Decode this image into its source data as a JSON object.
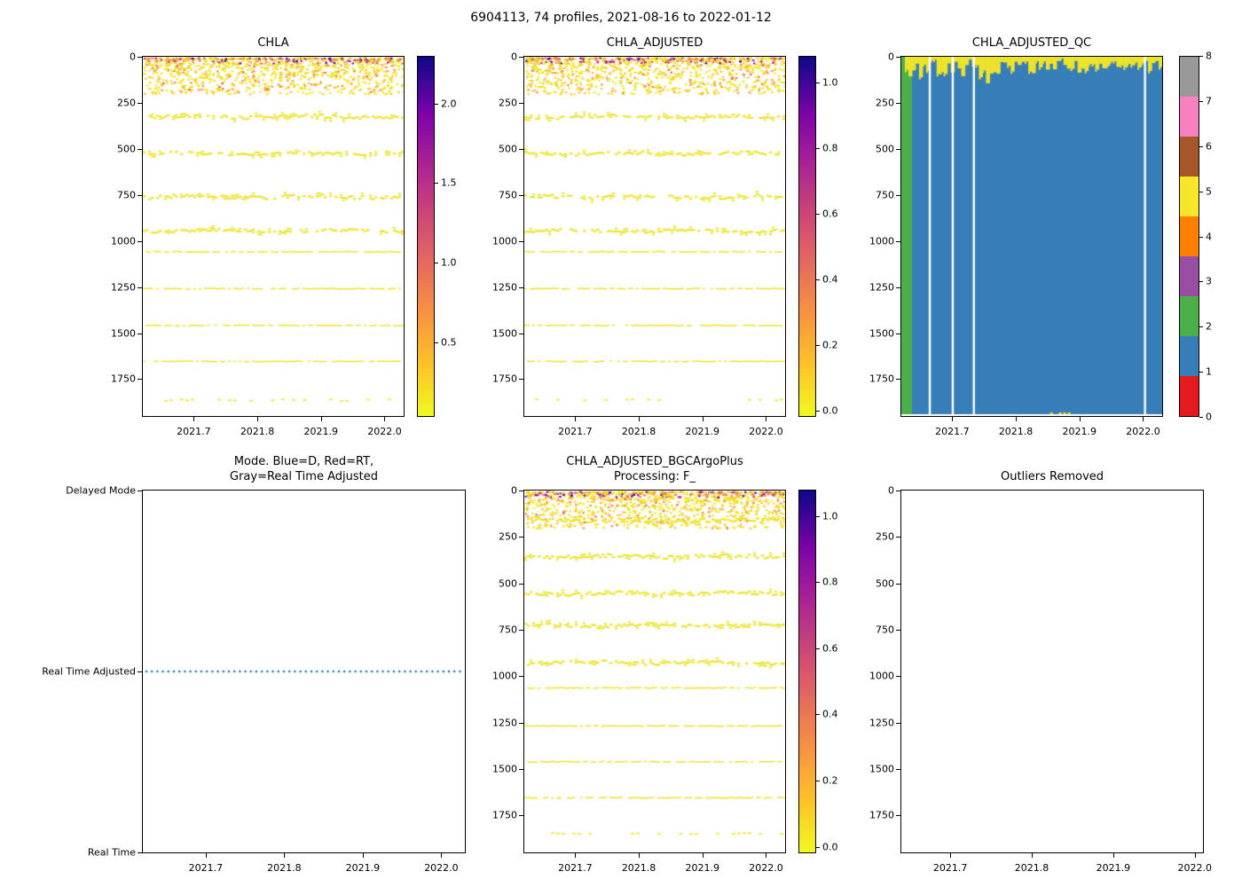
{
  "figure": {
    "title": "6904113, 74 profiles, 2021-08-16 to 2022-01-12",
    "platform": "6904113",
    "n_profiles": 74,
    "date_start": "2021-08-16",
    "date_end": "2022-01-12"
  },
  "chart_data": [
    {
      "type": "profile-heatmap",
      "title": "CHLA",
      "seed": 11,
      "x_range": [
        2021.62,
        2022.03
      ],
      "x_ticks": [
        2021.7,
        2021.8,
        2021.9,
        2022.0
      ],
      "x_tick_labels": [
        "2021.7",
        "2021.8",
        "2021.9",
        "2022.0"
      ],
      "depth_range": [
        0,
        1950
      ],
      "y_ticks": [
        0,
        250,
        500,
        750,
        1000,
        1250,
        1500,
        1750
      ],
      "y_tick_labels": [
        "0",
        "250",
        "500",
        "750",
        "1000",
        "1250",
        "1500",
        "1750"
      ],
      "colorbar": {
        "vmin": 0.03,
        "vmax": 2.3,
        "tick_values": [
          0.5,
          1.0,
          1.5,
          2.0
        ],
        "tick_labels": [
          "0.5",
          "1.0",
          "1.5",
          "2.0"
        ],
        "gradient_stops": [
          [
            "#f0f921",
            0
          ],
          [
            "#fdc328",
            14
          ],
          [
            "#f89441",
            28
          ],
          [
            "#e56b5d",
            42
          ],
          [
            "#cc4778",
            56
          ],
          [
            "#aa2395",
            70
          ],
          [
            "#7d03a8",
            84
          ],
          [
            "#0d0887",
            100
          ]
        ]
      },
      "band_color": "#ece32a",
      "surface": {
        "depth_min": 3,
        "depth_max": 200,
        "count": 1150,
        "shallow_colors": [
          [
            "#efe41f",
            0.38
          ],
          [
            "#fdc02f",
            0.18
          ],
          [
            "#f58b46",
            0.14
          ],
          [
            "#e16462",
            0.1
          ],
          [
            "#c13b82",
            0.08
          ],
          [
            "#8f0da4",
            0.07
          ],
          [
            "#41049d",
            0.05
          ]
        ],
        "deep_colors": [
          [
            "#efe41f",
            0.66
          ],
          [
            "#fdc02f",
            0.22
          ],
          [
            "#f58b46",
            0.09
          ],
          [
            "#e16462",
            0.03
          ]
        ]
      },
      "bands": [
        {
          "depth": 320,
          "spread": 9,
          "style": "thick"
        },
        {
          "depth": 520,
          "spread": 8,
          "style": "thick"
        },
        {
          "depth": 755,
          "spread": 9,
          "style": "thick"
        },
        {
          "depth": 940,
          "spread": 7,
          "style": "thick"
        },
        {
          "depth": 1055,
          "spread": 2,
          "style": "thin"
        },
        {
          "depth": 1255,
          "spread": 2,
          "style": "thin"
        },
        {
          "depth": 1455,
          "spread": 2,
          "style": "thin"
        },
        {
          "depth": 1650,
          "spread": 2,
          "style": "thin"
        },
        {
          "depth": 1860,
          "spread": 4,
          "style": "sparse"
        }
      ]
    },
    {
      "type": "profile-heatmap",
      "title": "CHLA_ADJUSTED",
      "seed": 23,
      "x_range": [
        2021.62,
        2022.03
      ],
      "x_ticks": [
        2021.7,
        2021.8,
        2021.9,
        2022.0
      ],
      "x_tick_labels": [
        "2021.7",
        "2021.8",
        "2021.9",
        "2022.0"
      ],
      "depth_range": [
        0,
        1950
      ],
      "y_ticks": [
        0,
        250,
        500,
        750,
        1000,
        1250,
        1500,
        1750
      ],
      "y_tick_labels": [
        "0",
        "250",
        "500",
        "750",
        "1000",
        "1250",
        "1500",
        "1750"
      ],
      "colorbar": {
        "vmin": -0.02,
        "vmax": 1.08,
        "tick_values": [
          0.0,
          0.2,
          0.4,
          0.6,
          0.8,
          1.0
        ],
        "tick_labels": [
          "0.0",
          "0.2",
          "0.4",
          "0.6",
          "0.8",
          "1.0"
        ],
        "gradient_stops": [
          [
            "#f0f921",
            0
          ],
          [
            "#fdc328",
            14
          ],
          [
            "#f89441",
            28
          ],
          [
            "#e56b5d",
            42
          ],
          [
            "#cc4778",
            56
          ],
          [
            "#aa2395",
            70
          ],
          [
            "#7d03a8",
            84
          ],
          [
            "#0d0887",
            100
          ]
        ]
      },
      "band_color": "#ece32a",
      "surface": {
        "depth_min": 3,
        "depth_max": 200,
        "count": 1100,
        "shallow_colors": [
          [
            "#efe41f",
            0.4
          ],
          [
            "#fdc02f",
            0.18
          ],
          [
            "#f58b46",
            0.14
          ],
          [
            "#e16462",
            0.1
          ],
          [
            "#c13b82",
            0.08
          ],
          [
            "#8f0da4",
            0.06
          ],
          [
            "#41049d",
            0.04
          ]
        ],
        "deep_colors": [
          [
            "#efe41f",
            0.66
          ],
          [
            "#fdc02f",
            0.22
          ],
          [
            "#f58b46",
            0.09
          ],
          [
            "#e16462",
            0.03
          ]
        ]
      },
      "bands": [
        {
          "depth": 320,
          "spread": 9,
          "style": "thick"
        },
        {
          "depth": 520,
          "spread": 8,
          "style": "thick"
        },
        {
          "depth": 755,
          "spread": 9,
          "style": "thick"
        },
        {
          "depth": 940,
          "spread": 7,
          "style": "thick"
        },
        {
          "depth": 1055,
          "spread": 2,
          "style": "thin"
        },
        {
          "depth": 1255,
          "spread": 2,
          "style": "thin"
        },
        {
          "depth": 1455,
          "spread": 2,
          "style": "thin"
        },
        {
          "depth": 1650,
          "spread": 2,
          "style": "thin"
        },
        {
          "depth": 1860,
          "spread": 4,
          "style": "sparse"
        }
      ]
    },
    {
      "type": "qc-heatmap",
      "title": "CHLA_ADJUSTED_QC",
      "seed": 5,
      "n_profiles": 74,
      "x_range": [
        2021.62,
        2022.03
      ],
      "x_ticks": [
        2021.7,
        2021.8,
        2021.9,
        2022.0
      ],
      "x_tick_labels": [
        "2021.7",
        "2021.8",
        "2021.9",
        "2022.0"
      ],
      "depth_range": [
        0,
        1950
      ],
      "y_ticks": [
        0,
        250,
        500,
        750,
        1000,
        1250,
        1500,
        1750
      ],
      "y_tick_labels": [
        "0",
        "250",
        "500",
        "750",
        "1000",
        "1250",
        "1500",
        "1750"
      ],
      "qc_fill_value": 1,
      "qc_fill_color": "#377eb8",
      "green_value": 2,
      "green_color": "#4daf4a",
      "green_profiles": 3,
      "surface_value": 5,
      "surface_color": "#ede32b",
      "surface_depth_min": 20,
      "surface_depth_max": 95,
      "gap_fractions": [
        0.105,
        0.193,
        0.274,
        0.93
      ],
      "bottom_marks": [
        {
          "x": 0.57,
          "w": 0.07
        }
      ],
      "colorbar": {
        "segment_colors": [
          "#e41a1c",
          "#377eb8",
          "#4daf4a",
          "#984ea3",
          "#ff7f00",
          "#f7e62a",
          "#a65628",
          "#f781bf",
          "#999999"
        ],
        "tick_values": [
          0,
          1,
          2,
          3,
          4,
          5,
          6,
          7,
          8
        ],
        "tick_labels": [
          "0",
          "1",
          "2",
          "3",
          "4",
          "5",
          "6",
          "7",
          "8"
        ]
      }
    },
    {
      "type": "mode-line",
      "title": "Mode. Blue=D, Red=RT,\nGray=Real Time Adjusted",
      "x_range": [
        2021.62,
        2022.03
      ],
      "x_ticks": [
        2021.7,
        2021.8,
        2021.9,
        2022.0
      ],
      "x_tick_labels": [
        "2021.7",
        "2021.8",
        "2021.9",
        "2022.0"
      ],
      "y_categories": [
        "Delayed Mode",
        "Real Time Adjusted",
        "Real Time"
      ],
      "line_category": "Real Time Adjusted",
      "line_category_index": 1,
      "line_color": "#1f77b4",
      "line_style": "dotted"
    },
    {
      "type": "profile-heatmap",
      "title": "CHLA_ADJUSTED_BGCArgoPlus\nProcessing: F_",
      "seed": 37,
      "x_range": [
        2021.62,
        2022.03
      ],
      "x_ticks": [
        2021.7,
        2021.8,
        2021.9,
        2022.0
      ],
      "x_tick_labels": [
        "2021.7",
        "2021.8",
        "2021.9",
        "2022.0"
      ],
      "depth_range": [
        0,
        1950
      ],
      "y_ticks": [
        0,
        250,
        500,
        750,
        1000,
        1250,
        1500,
        1750
      ],
      "y_tick_labels": [
        "0",
        "250",
        "500",
        "750",
        "1000",
        "1250",
        "1500",
        "1750"
      ],
      "colorbar": {
        "vmin": -0.02,
        "vmax": 1.08,
        "tick_values": [
          0.0,
          0.2,
          0.4,
          0.6,
          0.8,
          1.0
        ],
        "tick_labels": [
          "0.0",
          "0.2",
          "0.4",
          "0.6",
          "0.8",
          "1.0"
        ],
        "gradient_stops": [
          [
            "#f0f921",
            0
          ],
          [
            "#fdc328",
            14
          ],
          [
            "#f89441",
            28
          ],
          [
            "#e56b5d",
            42
          ],
          [
            "#cc4778",
            56
          ],
          [
            "#aa2395",
            70
          ],
          [
            "#7d03a8",
            84
          ],
          [
            "#0d0887",
            100
          ]
        ]
      },
      "band_color": "#ece32a",
      "surface": {
        "depth_min": 3,
        "depth_max": 200,
        "count": 1100,
        "shallow_colors": [
          [
            "#efe41f",
            0.36
          ],
          [
            "#fdc02f",
            0.18
          ],
          [
            "#f58b46",
            0.14
          ],
          [
            "#e16462",
            0.1
          ],
          [
            "#c13b82",
            0.09
          ],
          [
            "#8f0da4",
            0.08
          ],
          [
            "#41049d",
            0.05
          ]
        ],
        "deep_colors": [
          [
            "#efe41f",
            0.66
          ],
          [
            "#fdc02f",
            0.22
          ],
          [
            "#f58b46",
            0.09
          ],
          [
            "#e16462",
            0.03
          ]
        ]
      },
      "bands": [
        {
          "depth": 155,
          "spread": 10,
          "style": "thick"
        },
        {
          "depth": 350,
          "spread": 9,
          "style": "thick"
        },
        {
          "depth": 550,
          "spread": 9,
          "style": "thick"
        },
        {
          "depth": 722,
          "spread": 9,
          "style": "thick"
        },
        {
          "depth": 922,
          "spread": 8,
          "style": "thick"
        },
        {
          "depth": 1060,
          "spread": 2,
          "style": "thin"
        },
        {
          "depth": 1265,
          "spread": 2,
          "style": "thin"
        },
        {
          "depth": 1458,
          "spread": 2,
          "style": "thin"
        },
        {
          "depth": 1652,
          "spread": 2,
          "style": "thin"
        },
        {
          "depth": 1845,
          "spread": 3,
          "style": "sparse"
        }
      ]
    },
    {
      "type": "empty",
      "title": "Outliers Removed",
      "x_range": [
        2021.64,
        2022.01
      ],
      "x_ticks": [
        2021.7,
        2021.8,
        2021.9,
        2022.0
      ],
      "x_tick_labels": [
        "2021.7",
        "2021.8",
        "2021.9",
        "2022.0"
      ],
      "depth_range": [
        0,
        1950
      ],
      "y_ticks": [
        0,
        250,
        500,
        750,
        1000,
        1250,
        1500,
        1750
      ],
      "y_tick_labels": [
        "0",
        "250",
        "500",
        "750",
        "1000",
        "1250",
        "1500",
        "1750"
      ]
    }
  ]
}
